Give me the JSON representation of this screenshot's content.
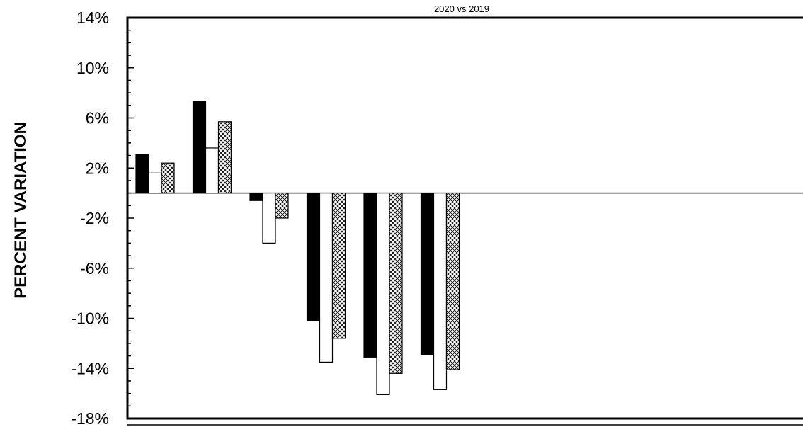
{
  "chart_data": {
    "type": "bar",
    "title": "",
    "subtitle": "2020 vs 2019",
    "xlabel": "",
    "ylabel": "PERCENT VARIATION",
    "ylim": [
      -18,
      14
    ],
    "yticks": [
      14,
      10,
      6,
      2,
      -2,
      -6,
      -10,
      -14,
      -18
    ],
    "ytick_labels": [
      "14%",
      "10%",
      "6%",
      "2%",
      "-2%",
      "-6%",
      "-10%",
      "-14%",
      "-18%"
    ],
    "categories": [
      "",
      "",
      "",
      "",
      "",
      ""
    ],
    "grid": false,
    "legend": "none",
    "series": [
      {
        "values": [
          3.1,
          7.3,
          -0.6,
          -10.2,
          -13.1,
          -12.9
        ],
        "fill": "#000000"
      },
      {
        "values": [
          1.6,
          3.6,
          -4.0,
          -13.5,
          -16.1,
          -15.7
        ],
        "fill": "#ffffff"
      },
      {
        "values": [
          2.4,
          5.7,
          -2.0,
          -11.6,
          -14.4,
          -14.1
        ],
        "fill": "crosshatch"
      }
    ]
  }
}
